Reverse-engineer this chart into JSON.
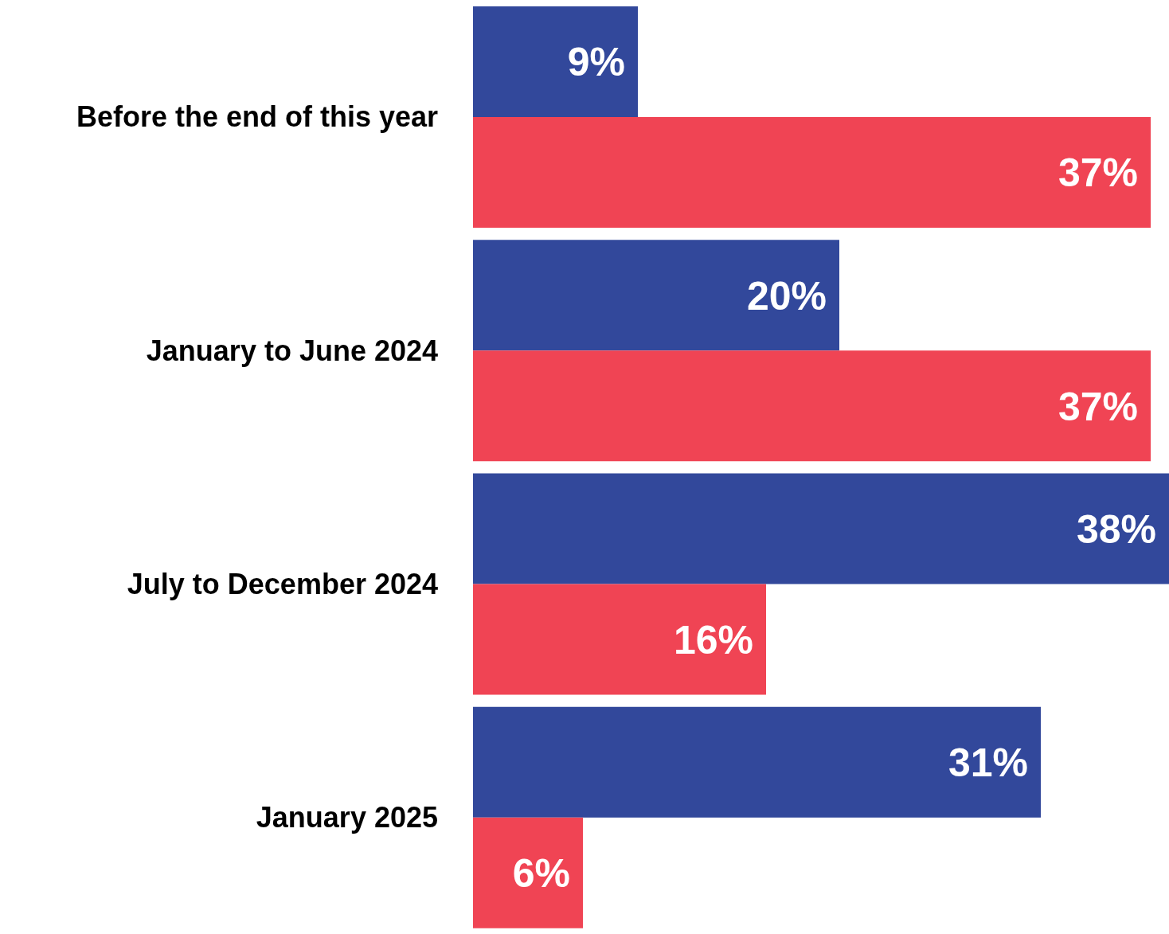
{
  "chart_data": {
    "type": "bar",
    "orientation": "horizontal",
    "categories": [
      "Before the end of this year",
      "January to June 2024",
      "July to December 2024",
      "January 2025"
    ],
    "series": [
      {
        "color": "#32489b",
        "values": [
          9,
          20,
          38,
          31
        ],
        "value_labels": [
          "9%",
          "20%",
          "38%",
          "31%"
        ]
      },
      {
        "color": "#f04454",
        "values": [
          37,
          37,
          16,
          6
        ],
        "value_labels": [
          "37%",
          "37%",
          "16%",
          "6%"
        ]
      }
    ],
    "grid": false,
    "legend": false,
    "tick_labels": "y"
  }
}
